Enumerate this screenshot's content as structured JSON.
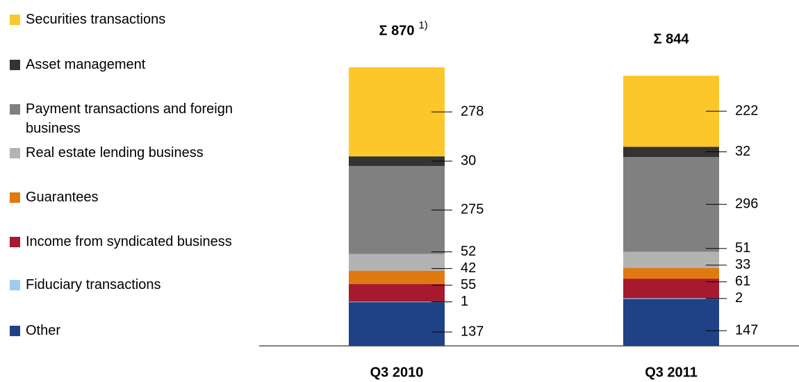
{
  "chart_data": {
    "type": "stacked-bar",
    "categories": [
      "Q3 2010",
      "Q3 2011"
    ],
    "series": [
      {
        "name": "Securities transactions",
        "color": "#fcc72b",
        "values": [
          278,
          222
        ]
      },
      {
        "name": "Asset management",
        "color": "#333333",
        "values": [
          30,
          32
        ]
      },
      {
        "name": "Payment transactions and foreign business",
        "color": "#808080",
        "values": [
          275,
          296
        ]
      },
      {
        "name": "Real estate lending business",
        "color": "#b3b3b3",
        "values": [
          52,
          51
        ]
      },
      {
        "name": "Guarantees",
        "color": "#e07a10",
        "values": [
          42,
          33
        ]
      },
      {
        "name": "Income from syndicated business",
        "color": "#a6192e",
        "values": [
          55,
          61
        ]
      },
      {
        "name": "Fiduciary transactions",
        "color": "#9fcbf0",
        "values": [
          1,
          2
        ]
      },
      {
        "name": "Other",
        "color": "#1f4287",
        "values": [
          137,
          147
        ]
      }
    ],
    "totals": {
      "values": [
        870,
        844
      ],
      "value_labels": [
        "Σ 870",
        "Σ 844"
      ],
      "notes": [
        "1)",
        null
      ]
    }
  }
}
